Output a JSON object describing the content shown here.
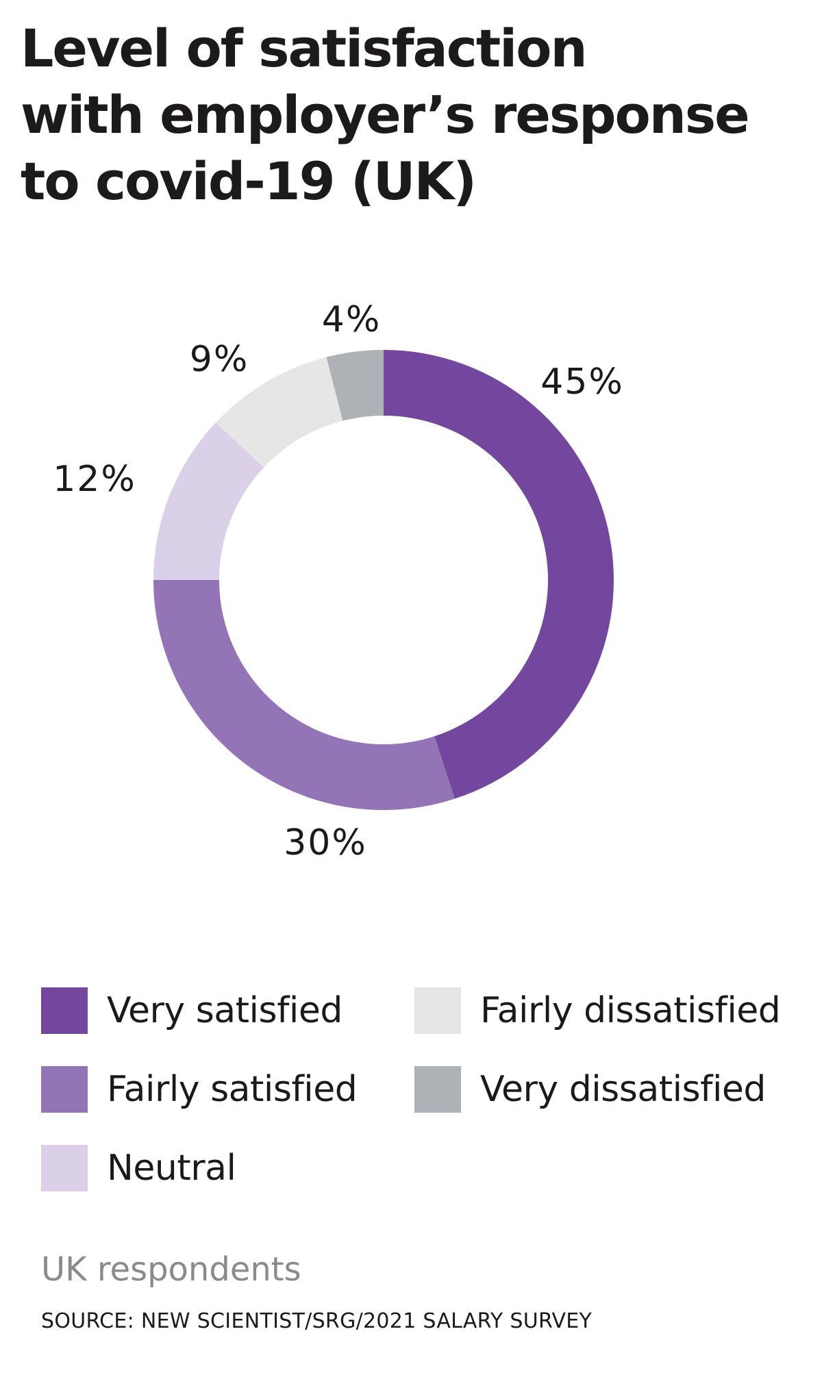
{
  "title_lines": [
    "Level of satisfaction",
    "with employer’s response",
    "to covid-19 (UK)"
  ],
  "chart_data": {
    "type": "pie",
    "variant": "donut",
    "title": "Level of satisfaction with employer’s response to covid-19 (UK)",
    "unit": "%",
    "start": "12 o'clock",
    "direction": "clockwise",
    "slices": [
      {
        "label": "Very satisfied",
        "value": 45,
        "display": "45%",
        "color": "#72479d"
      },
      {
        "label": "Fairly satisfied",
        "value": 30,
        "display": "30%",
        "color": "#9374b6"
      },
      {
        "label": "Neutral",
        "value": 12,
        "display": "12%",
        "color": "#dad0e7"
      },
      {
        "label": "Fairly dissatisfied",
        "value": 9,
        "display": "9%",
        "color": "#e6e6e6"
      },
      {
        "label": "Very dissatisfied",
        "value": 4,
        "display": "4%",
        "color": "#aeb1b5"
      }
    ],
    "legend": {
      "placement": "bottom",
      "columns": [
        [
          "Very satisfied",
          "Fairly satisfied",
          "Neutral"
        ],
        [
          "Fairly dissatisfied",
          "Very dissatisfied"
        ]
      ]
    }
  },
  "subtitle": "UK respondents",
  "source": "SOURCE: NEW SCIENTIST/SRG/2021 SALARY SURVEY"
}
